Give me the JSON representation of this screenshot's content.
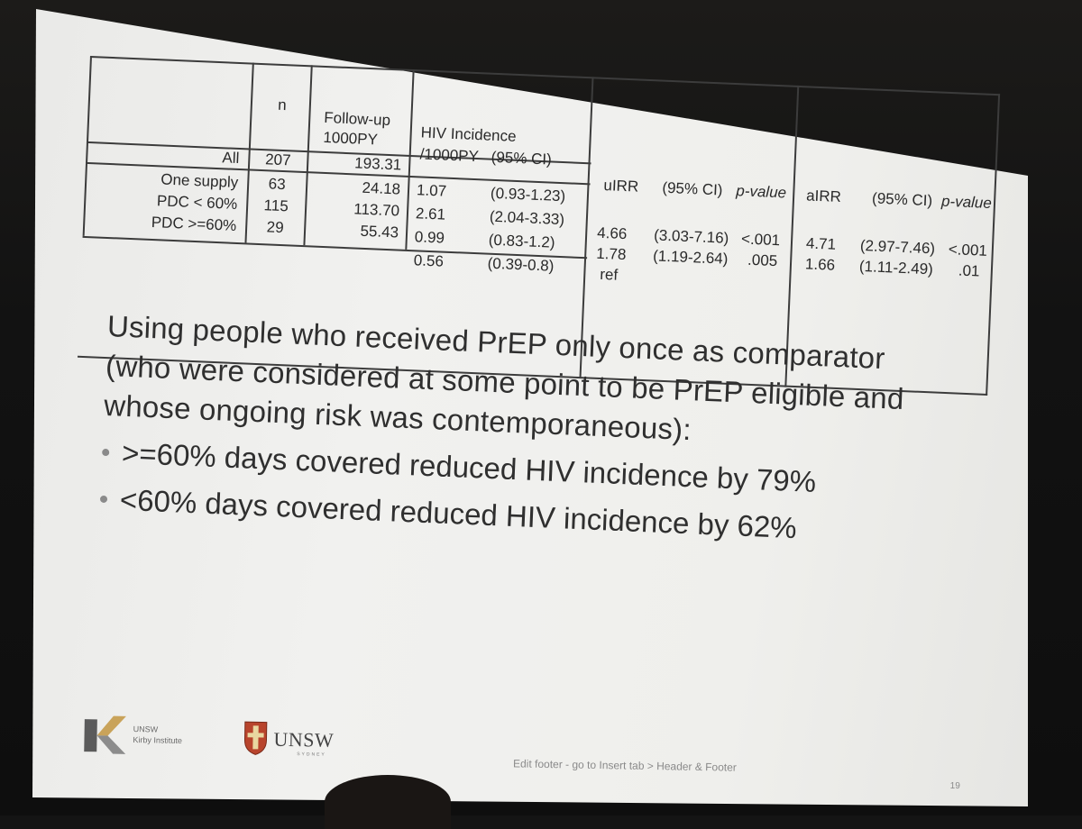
{
  "table": {
    "headers": {
      "n": "n",
      "followup": [
        "Follow-up",
        "1000PY"
      ],
      "incidence": [
        "HIV Incidence",
        "/1000PY   (95% CI)"
      ],
      "uirr": "uIRR",
      "uci": "(95% CI)",
      "up": "p-value",
      "airr": "aIRR",
      "aci": "(95% CI)",
      "ap": "p-value"
    },
    "all_row": {
      "label": "All",
      "n": "207",
      "followup": "193.31"
    },
    "rows": [
      {
        "label": "One supply",
        "n": "63",
        "followup": "24.18",
        "inc": "1.07",
        "inc_ci": "(0.93-1.23)",
        "uirr": "",
        "uci": "",
        "up": "",
        "airr": "",
        "aci": "",
        "ap": ""
      },
      {
        "label": "PDC < 60%",
        "n": "115",
        "followup": "113.70",
        "inc": "2.61",
        "inc_ci": "(2.04-3.33)",
        "uirr": "4.66",
        "uci": "(3.03-7.16)",
        "up": "<.001",
        "airr": "4.71",
        "aci": "(2.97-7.46)",
        "ap": "<.001"
      },
      {
        "label": "PDC >=60%",
        "n": "29",
        "followup": "55.43",
        "inc": "0.99",
        "inc_ci": "(0.83-1.2)",
        "uirr": "1.78",
        "uci": "(1.19-2.64)",
        "up": ".005",
        "airr": "1.66",
        "aci": "(1.11-2.49)",
        "ap": ".01"
      },
      {
        "label": "",
        "n": "",
        "followup": "",
        "inc": "0.56",
        "inc_ci": "(0.39-0.8)",
        "uirr": "ref",
        "uci": "",
        "up": "",
        "airr": "",
        "aci": "",
        "ap": ""
      }
    ]
  },
  "slide_text": {
    "headline": "Using people who received PrEP only once as comparator (who were considered at some point to be PrEP eligible and whose ongoing risk was contemporaneous):",
    "bullets": [
      ">=60% days covered reduced HIV incidence by 79%",
      "<60% days covered reduced HIV incidence by 62%"
    ]
  },
  "footer": {
    "kirby_line1": "UNSW",
    "kirby_line2": "Kirby Institute",
    "unsw_word": "UNSW",
    "unsw_sub": "SYDNEY",
    "note": "Edit footer - go to Insert tab > Header & Footer",
    "page": "19"
  }
}
